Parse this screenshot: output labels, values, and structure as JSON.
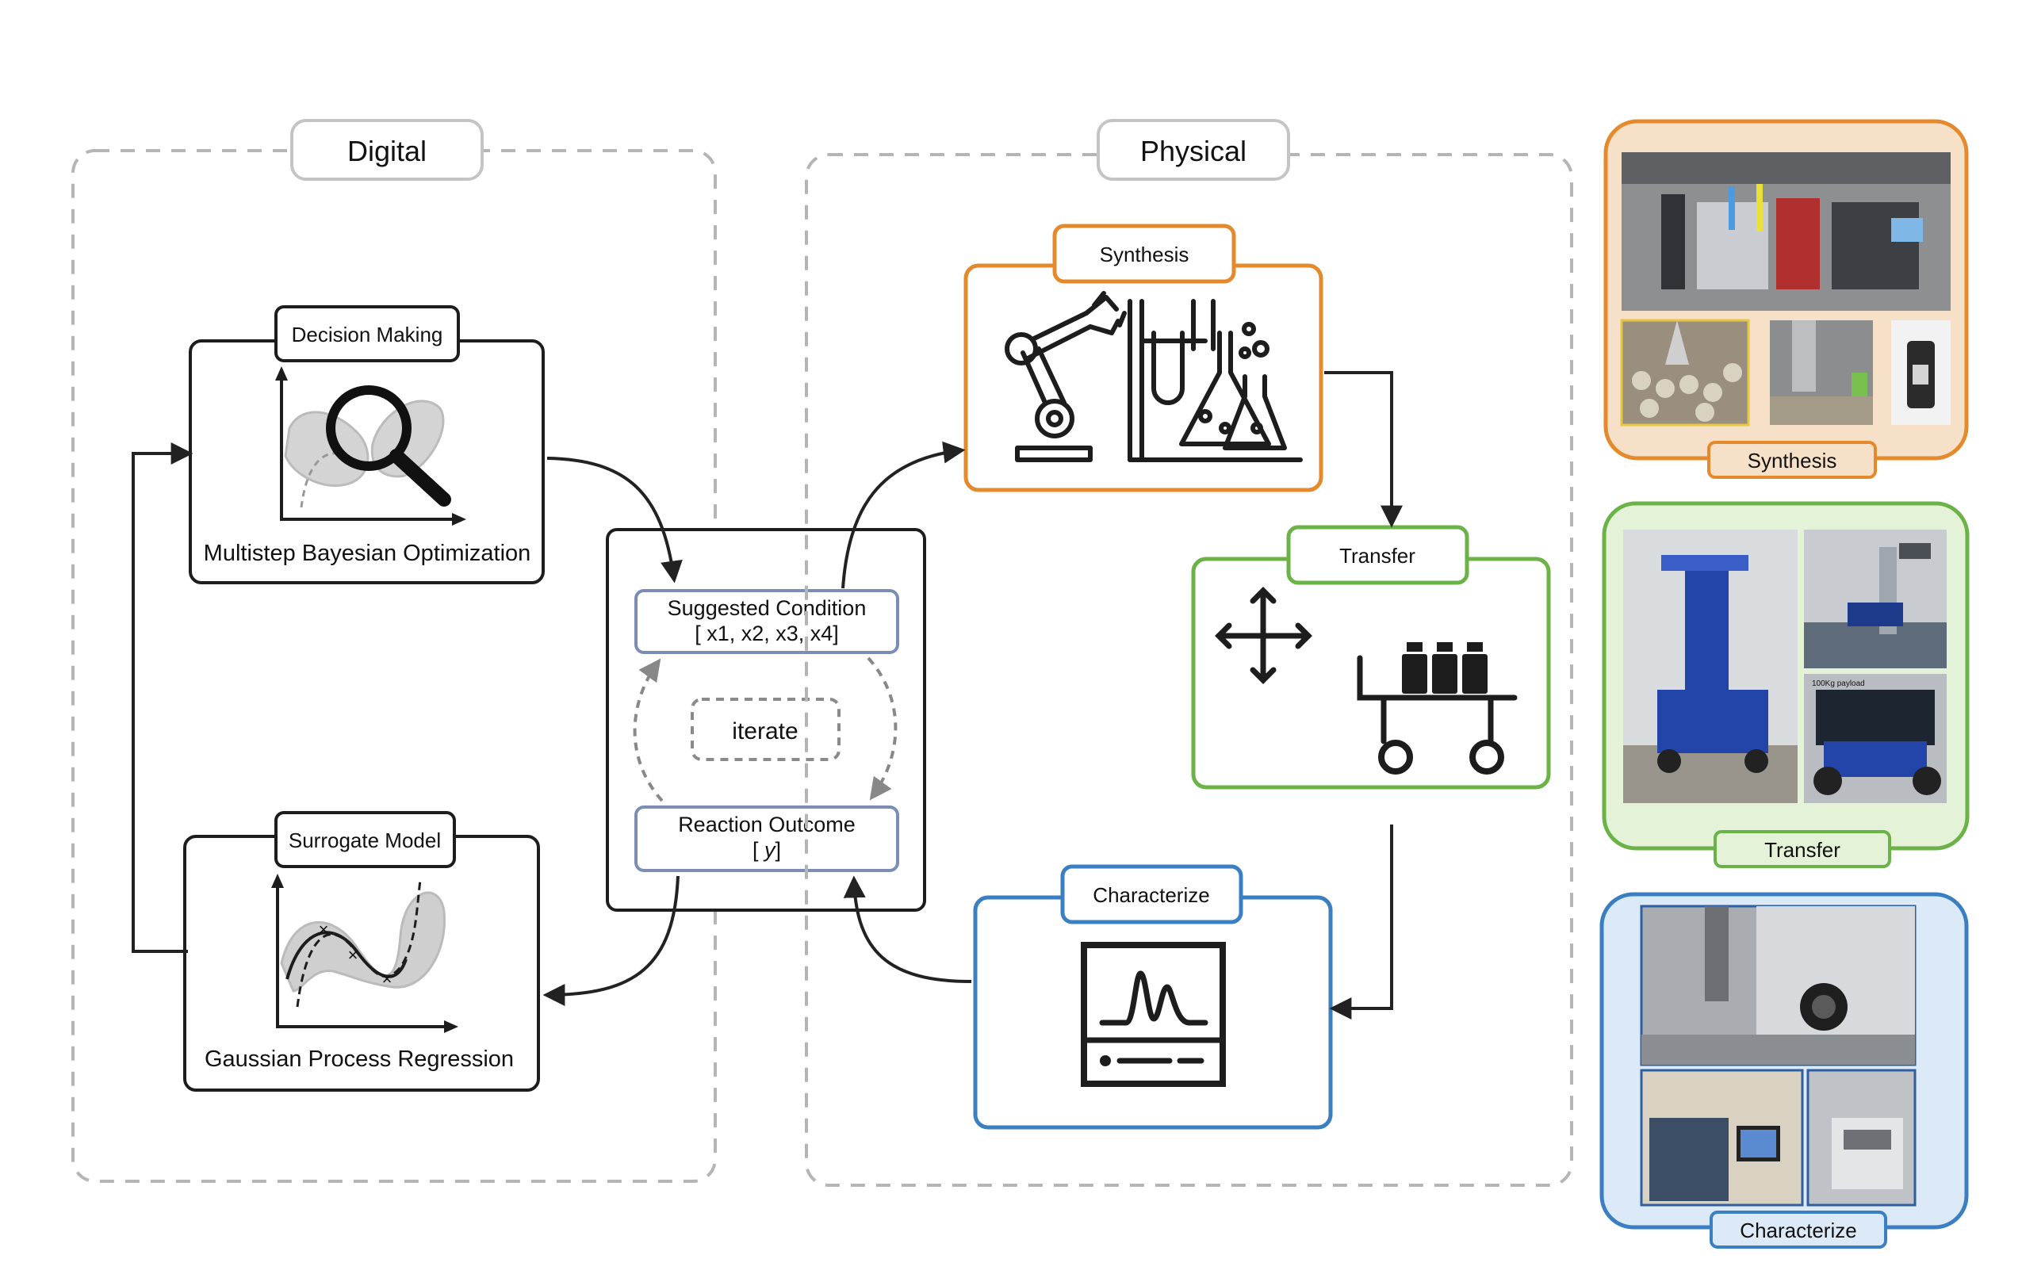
{
  "groups": {
    "digital": "Digital",
    "physical": "Physical"
  },
  "digital": {
    "decision_making": {
      "tag": "Decision Making",
      "caption": "Multistep Bayesian Optimization",
      "icon": "magnifier-plot-icon"
    },
    "surrogate_model": {
      "tag": "Surrogate Model",
      "caption": "Gaussian Process Regression",
      "icon": "gp-regression-plot-icon"
    }
  },
  "loop": {
    "suggested": {
      "line1": "Suggested Condition",
      "line2": "[ x1, x2, x3, x4]"
    },
    "iterate": "iterate",
    "outcome": {
      "line1": "Reaction Outcome",
      "line2_open": "[ ",
      "line2_var": "y",
      "line2_close": "]"
    }
  },
  "physical": {
    "synthesis": {
      "tag": "Synthesis",
      "icon": "robot-arm-lab-glassware-icon"
    },
    "transfer": {
      "tag": "Transfer",
      "icon": "move-arrows-cart-icon"
    },
    "characterize": {
      "tag": "Characterize",
      "icon": "spectrum-analyzer-icon"
    }
  },
  "photos": {
    "synthesis": {
      "label": "Synthesis"
    },
    "transfer": {
      "label": "Transfer",
      "payload_text": "100Kg payload"
    },
    "characterize": {
      "label": "Characterize"
    }
  },
  "colors": {
    "synthesis": "#e58a2c",
    "synthesis_bg": "#f6e0c8",
    "transfer": "#6bb347",
    "transfer_bg": "#e4f2d8",
    "characterize": "#3a7fc2",
    "characterize_bg": "#dce9f6",
    "loop_box": "#7b8db5",
    "dashed": "#b5b5b5"
  }
}
